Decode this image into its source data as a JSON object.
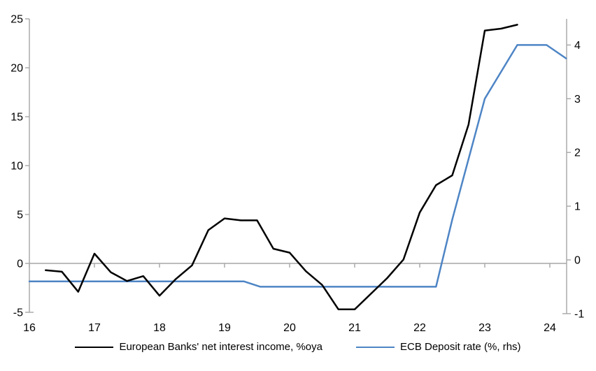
{
  "chart_data": {
    "type": "line",
    "title": "",
    "x_axis": {
      "tick_labels": [
        "16",
        "17",
        "18",
        "19",
        "20",
        "21",
        "22",
        "23",
        "24"
      ],
      "tick_values": [
        16,
        17,
        18,
        19,
        20,
        21,
        22,
        23,
        24
      ],
      "range": [
        16,
        24.26
      ]
    },
    "left_axis": {
      "tick_labels": [
        "25",
        "20",
        "15",
        "10",
        "5",
        "0",
        "-5"
      ],
      "tick_values": [
        25,
        20,
        15,
        10,
        5,
        0,
        -5
      ],
      "range": [
        -5,
        25
      ]
    },
    "right_axis": {
      "tick_labels": [
        "4",
        "3",
        "2",
        "1",
        "0",
        "-1"
      ],
      "tick_values": [
        4,
        3,
        2,
        1,
        0,
        -1
      ],
      "range": [
        -1,
        4.5
      ]
    },
    "grid": "zero-line-only",
    "legend_position": "bottom",
    "series": [
      {
        "name": "European Banks' net interest income, %oya",
        "axis": "left",
        "color": "#000000",
        "x": [
          16.25,
          16.5,
          16.75,
          17.0,
          17.25,
          17.5,
          17.75,
          18.0,
          18.25,
          18.5,
          18.75,
          19.0,
          19.25,
          19.5,
          19.75,
          20.0,
          20.25,
          20.5,
          20.75,
          21.0,
          21.25,
          21.5,
          21.75,
          22.0,
          22.25,
          22.5,
          22.75,
          23.0,
          23.25,
          23.5
        ],
        "values": [
          -0.7,
          -0.85,
          -2.9,
          1.0,
          -0.9,
          -1.8,
          -1.3,
          -3.3,
          -1.6,
          -0.2,
          3.4,
          4.6,
          4.4,
          4.4,
          1.5,
          1.1,
          -0.8,
          -2.2,
          -4.7,
          -4.7,
          -3.1,
          -1.5,
          0.4,
          5.2,
          8.0,
          9.0,
          14.2,
          23.8,
          24.0,
          24.4
        ]
      },
      {
        "name": "ECB Deposit rate (%, rhs)",
        "axis": "right",
        "color": "#4e85c5",
        "x": [
          16.0,
          19.3,
          19.55,
          22.25,
          22.5,
          23.0,
          23.5,
          23.95,
          24.25
        ],
        "values": [
          -0.4,
          -0.4,
          -0.5,
          -0.5,
          0.75,
          3.0,
          4.0,
          4.0,
          3.75
        ]
      }
    ]
  },
  "legend": {
    "series1": "European Banks' net interest income, %oya",
    "series2": "ECB Deposit rate (%, rhs)"
  },
  "colors": {
    "series1": "#000000",
    "series2": "#4e85c5",
    "axis_gray": "#a6a6a6"
  }
}
